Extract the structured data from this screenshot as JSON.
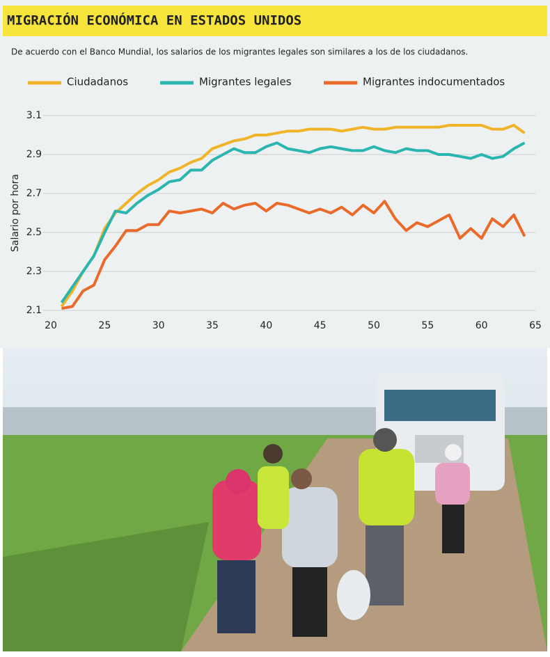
{
  "chart_data": {
    "type": "line",
    "title": "MIGRACIÓN ECONÓMICA EN ESTADOS UNIDOS",
    "subtitle": "De acuerdo con el Banco Mundial, los salarios de los migrantes legales son similares a los de los ciudadanos.",
    "y_label": "Salario por hora",
    "x": [
      21,
      22,
      23,
      24,
      25,
      26,
      27,
      28,
      29,
      30,
      31,
      32,
      33,
      34,
      35,
      36,
      37,
      38,
      39,
      40,
      41,
      42,
      43,
      44,
      45,
      46,
      47,
      48,
      49,
      50,
      51,
      52,
      53,
      54,
      55,
      56,
      57,
      58,
      59,
      60,
      61,
      62,
      63,
      64
    ],
    "series": [
      {
        "name": "Ciudadanos",
        "color": "#f0b429",
        "values": [
          2.12,
          2.2,
          2.3,
          2.38,
          2.52,
          2.6,
          2.65,
          2.7,
          2.74,
          2.77,
          2.81,
          2.83,
          2.86,
          2.88,
          2.93,
          2.95,
          2.97,
          2.98,
          3.0,
          3.0,
          3.01,
          3.02,
          3.02,
          3.03,
          3.03,
          3.03,
          3.02,
          3.03,
          3.04,
          3.03,
          3.03,
          3.04,
          3.04,
          3.04,
          3.04,
          3.04,
          3.05,
          3.05,
          3.05,
          3.05,
          3.03,
          3.03,
          3.05,
          3.01
        ]
      },
      {
        "name": "Migrantes legales",
        "color": "#2bb5b0",
        "values": [
          2.14,
          2.22,
          2.3,
          2.38,
          2.5,
          2.61,
          2.6,
          2.65,
          2.69,
          2.72,
          2.76,
          2.77,
          2.82,
          2.82,
          2.87,
          2.9,
          2.93,
          2.91,
          2.91,
          2.94,
          2.96,
          2.93,
          2.92,
          2.91,
          2.93,
          2.94,
          2.93,
          2.92,
          2.92,
          2.94,
          2.92,
          2.91,
          2.93,
          2.92,
          2.92,
          2.9,
          2.9,
          2.89,
          2.88,
          2.9,
          2.88,
          2.89,
          2.93,
          2.96
        ]
      },
      {
        "name": "Migrantes indocumentados",
        "color": "#ea6a2a",
        "values": [
          2.11,
          2.12,
          2.2,
          2.23,
          2.36,
          2.43,
          2.51,
          2.51,
          2.54,
          2.54,
          2.61,
          2.6,
          2.61,
          2.62,
          2.6,
          2.65,
          2.62,
          2.64,
          2.65,
          2.61,
          2.65,
          2.64,
          2.62,
          2.6,
          2.62,
          2.6,
          2.63,
          2.59,
          2.64,
          2.6,
          2.66,
          2.57,
          2.51,
          2.55,
          2.53,
          2.56,
          2.59,
          2.47,
          2.52,
          2.47,
          2.57,
          2.53,
          2.59,
          2.48
        ]
      }
    ],
    "xlim": [
      20,
      65
    ],
    "xticks": [
      20,
      25,
      30,
      35,
      40,
      45,
      50,
      55,
      60,
      65
    ],
    "ylim": [
      2.1,
      3.1
    ],
    "yticks": [
      2.1,
      2.3,
      2.5,
      2.7,
      2.9,
      3.1
    ],
    "grid": true
  }
}
